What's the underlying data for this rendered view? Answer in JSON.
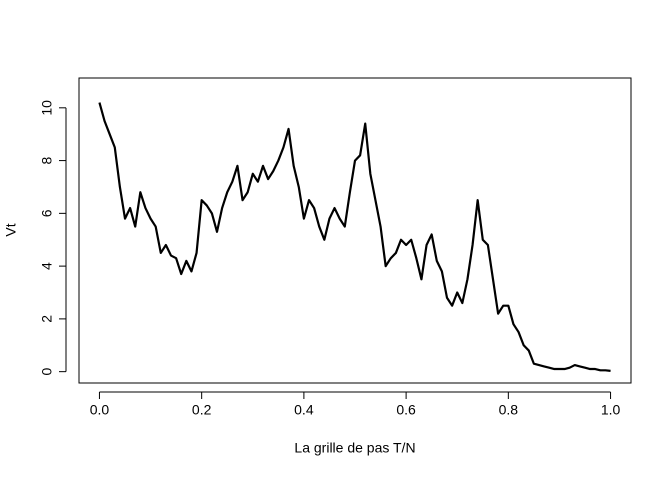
{
  "chart_data": {
    "type": "line",
    "xlabel": "La grille de pas T/N",
    "ylabel": "Vt",
    "x": [
      0,
      0.01,
      0.02,
      0.03,
      0.04,
      0.05,
      0.06,
      0.07,
      0.08,
      0.09,
      0.1,
      0.11,
      0.12,
      0.13,
      0.14,
      0.15,
      0.16,
      0.17,
      0.18,
      0.19,
      0.2,
      0.21,
      0.22,
      0.23,
      0.24,
      0.25,
      0.26,
      0.27,
      0.28,
      0.29,
      0.3,
      0.31,
      0.32,
      0.33,
      0.34,
      0.35,
      0.36,
      0.37,
      0.38,
      0.39,
      0.4,
      0.41,
      0.42,
      0.43,
      0.44,
      0.45,
      0.46,
      0.47,
      0.48,
      0.49,
      0.5,
      0.51,
      0.52,
      0.53,
      0.54,
      0.55,
      0.56,
      0.57,
      0.58,
      0.59,
      0.6,
      0.61,
      0.62,
      0.63,
      0.64,
      0.65,
      0.66,
      0.67,
      0.68,
      0.69,
      0.7,
      0.71,
      0.72,
      0.73,
      0.74,
      0.75,
      0.76,
      0.77,
      0.78,
      0.79,
      0.8,
      0.81,
      0.82,
      0.83,
      0.84,
      0.85,
      0.86,
      0.87,
      0.88,
      0.89,
      0.9,
      0.91,
      0.92,
      0.93,
      0.94,
      0.95,
      0.96,
      0.97,
      0.98,
      0.99,
      1
    ],
    "series": [
      {
        "color": "#000000",
        "values": [
          10.2,
          9.5,
          9.0,
          8.5,
          7.0,
          5.8,
          6.2,
          5.5,
          6.8,
          6.2,
          5.8,
          5.5,
          4.5,
          4.8,
          4.4,
          4.3,
          3.7,
          4.2,
          3.8,
          4.5,
          6.5,
          6.3,
          6.0,
          5.3,
          6.2,
          6.8,
          7.2,
          7.8,
          6.5,
          6.8,
          7.5,
          7.2,
          7.8,
          7.3,
          7.6,
          8.0,
          8.5,
          9.2,
          7.8,
          7.0,
          5.8,
          6.5,
          6.2,
          5.5,
          5.0,
          5.8,
          6.2,
          5.8,
          5.5,
          6.8,
          8.0,
          8.2,
          9.4,
          7.5,
          6.5,
          5.5,
          4.0,
          4.3,
          4.5,
          5.0,
          4.8,
          5.0,
          4.3,
          3.5,
          4.8,
          5.2,
          4.2,
          3.8,
          2.8,
          2.5,
          3.0,
          2.6,
          3.5,
          4.8,
          6.5,
          5.0,
          4.8,
          3.5,
          2.2,
          2.5,
          2.5,
          1.8,
          1.5,
          1.0,
          0.8,
          0.3,
          0.25,
          0.2,
          0.15,
          0.1,
          0.1,
          0.1,
          0.15,
          0.25,
          0.2,
          0.15,
          0.1,
          0.1,
          0.05,
          0.05,
          0.03
        ]
      }
    ],
    "xlim": [
      -0.04,
      1.04
    ],
    "ylim": [
      -0.43,
      11.13
    ],
    "xticks": [
      {
        "value": 0,
        "label": "0.0"
      },
      0.2,
      0.4,
      0.6,
      0.8,
      {
        "value": 1,
        "label": "1.0"
      }
    ],
    "yticks": [
      0,
      2,
      4,
      6,
      8,
      10
    ]
  }
}
